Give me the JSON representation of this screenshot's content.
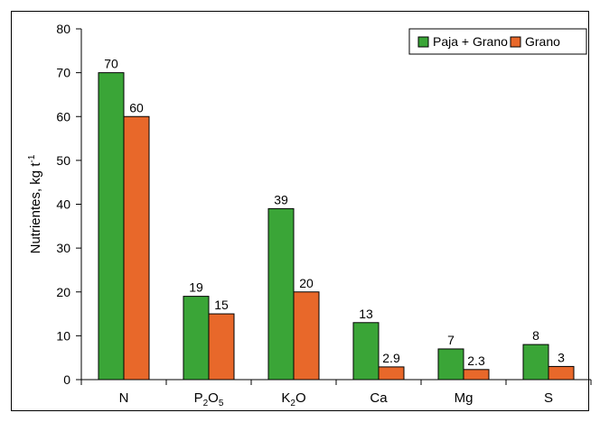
{
  "chart_data": {
    "type": "bar",
    "categories": [
      {
        "base": "N",
        "sub": ""
      },
      {
        "base": "P",
        "sub": "2",
        "base2": "O",
        "sub2": "5"
      },
      {
        "base": "K",
        "sub": "2",
        "base2": "O",
        "sub2": ""
      },
      {
        "base": "Ca",
        "sub": ""
      },
      {
        "base": "Mg",
        "sub": ""
      },
      {
        "base": "S",
        "sub": ""
      }
    ],
    "series": [
      {
        "name": "Paja + Grano",
        "color": "#3aa537",
        "values": [
          70,
          19,
          39,
          13,
          7,
          8
        ],
        "labels": [
          "70",
          "19",
          "39",
          "13",
          "7",
          "8"
        ]
      },
      {
        "name": "Grano",
        "color": "#e8682a",
        "values": [
          60,
          15,
          20,
          2.9,
          2.3,
          3
        ],
        "labels": [
          "60",
          "15",
          "20",
          "2.9",
          "2.3",
          "3"
        ]
      }
    ],
    "ylabel": {
      "main": "Nutrientes, kg t",
      "sup": "-1"
    },
    "ylim": [
      0,
      80
    ],
    "yticks": [
      "0",
      "10",
      "20",
      "30",
      "40",
      "50",
      "60",
      "70",
      "80"
    ],
    "legend_position": "top-right",
    "grid": false
  }
}
